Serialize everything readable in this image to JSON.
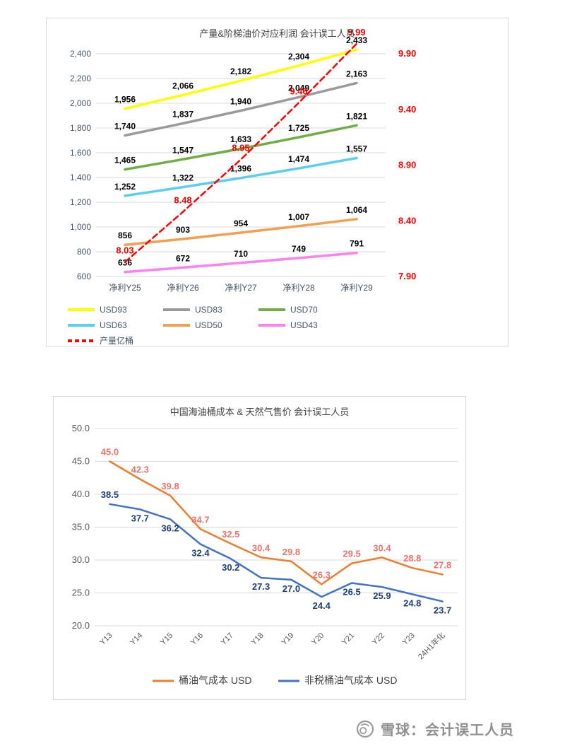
{
  "chart_data": [
    {
      "type": "line",
      "title": "产量&阶梯油价对应利润 会计误工人员",
      "categories": [
        "净利Y25",
        "净利Y26",
        "净利Y27",
        "净利Y28",
        "净利Y29"
      ],
      "x_color": "#44546a",
      "grid": true,
      "legend_position": "bottom",
      "left_axis": {
        "min": 600,
        "max": 2400,
        "color": "#44546a",
        "ticks": [
          {
            "v": 600,
            "label": "600"
          },
          {
            "v": 800,
            "label": "800"
          },
          {
            "v": 1000,
            "label": "1,000"
          },
          {
            "v": 1200,
            "label": "1,200"
          },
          {
            "v": 1400,
            "label": "1,400"
          },
          {
            "v": 1600,
            "label": "1,600"
          },
          {
            "v": 1800,
            "label": "1,800"
          },
          {
            "v": 2000,
            "label": "2,000"
          },
          {
            "v": 2200,
            "label": "2,200"
          },
          {
            "v": 2400,
            "label": "2,400"
          }
        ]
      },
      "right_axis": {
        "min": 7.9,
        "max": 9.9,
        "color": "#ff0000",
        "ticks": [
          {
            "v": 7.9,
            "label": "7.90"
          },
          {
            "v": 8.4,
            "label": "8.40"
          },
          {
            "v": 8.9,
            "label": "8.90"
          },
          {
            "v": 9.4,
            "label": "9.40"
          },
          {
            "v": 9.9,
            "label": "9.90"
          }
        ]
      },
      "series": [
        {
          "name": "USD93",
          "color": "#ffff00",
          "values": [
            1956,
            2066,
            2182,
            2304,
            2433
          ],
          "labels": [
            "1,956",
            "2,066",
            "2,182",
            "2,304",
            "2,433"
          ],
          "label_color": "#000000"
        },
        {
          "name": "USD83",
          "color": "#9a9a9a",
          "values": [
            1740,
            1837,
            1940,
            2049,
            2163
          ],
          "labels": [
            "1,740",
            "1,837",
            "1,940",
            "2,049",
            "2,163"
          ],
          "label_color": "#000000"
        },
        {
          "name": "USD70",
          "color": "#70ad47",
          "values": [
            1465,
            1547,
            1633,
            1725,
            1821
          ],
          "labels": [
            "1,465",
            "1,547",
            "1,633",
            "1,725",
            "1,821"
          ],
          "label_color": "#000000"
        },
        {
          "name": "USD63",
          "color": "#5bcdf0",
          "values": [
            1252,
            1322,
            1396,
            1474,
            1557
          ],
          "labels": [
            "1,252",
            "1,322",
            "1,396",
            "1,474",
            "1,557"
          ],
          "label_color": "#000000"
        },
        {
          "name": "USD50",
          "color": "#f0a050",
          "values": [
            856,
            903,
            954,
            1007,
            1064
          ],
          "labels": [
            "856",
            "903",
            "954",
            "1,007",
            "1,064"
          ],
          "label_color": "#000000"
        },
        {
          "name": "USD43",
          "color": "#ff80f0",
          "values": [
            636,
            672,
            710,
            749,
            791
          ],
          "labels": [
            "636",
            "672",
            "710",
            "749",
            "791"
          ],
          "label_color": "#000000"
        },
        {
          "name": "产量亿桶",
          "color": "#ff0000",
          "dashed": true,
          "width": 2.5,
          "axis": "right",
          "values": [
            8.03,
            8.48,
            8.95,
            9.46,
            9.99
          ],
          "labels": [
            "8.03",
            "8.48",
            "8.95",
            "9.46",
            "9.99"
          ],
          "label_color": "#ff0000",
          "label_size": 13,
          "label_dy": -3
        }
      ]
    },
    {
      "type": "line",
      "title": "中国海油桶成本 & 天然气售价 会计误工人员",
      "categories": [
        "Y13",
        "Y14",
        "Y15",
        "Y16",
        "Y17",
        "Y18",
        "Y19",
        "Y20",
        "Y21",
        "Y22",
        "Y23",
        "24H1年化"
      ],
      "x_color": "#595959",
      "grid": true,
      "legend_position": "bottom",
      "left_axis": {
        "min": 20,
        "max": 50,
        "color": "#595959",
        "ticks": [
          {
            "v": 20,
            "label": "20.0"
          },
          {
            "v": 25,
            "label": "25.0"
          },
          {
            "v": 30,
            "label": "30.0"
          },
          {
            "v": 35,
            "label": "35.0"
          },
          {
            "v": 40,
            "label": "40.0"
          },
          {
            "v": 45,
            "label": "45.0"
          },
          {
            "v": 50,
            "label": "50.0"
          }
        ]
      },
      "series": [
        {
          "name": "桶油气成本 USD",
          "color": "#ed7d31",
          "values": [
            45.0,
            42.3,
            39.8,
            34.7,
            32.5,
            30.4,
            29.8,
            26.3,
            29.5,
            30.4,
            28.8,
            27.8
          ],
          "labels": [
            "45.0",
            "42.3",
            "39.8",
            "34.7",
            "32.5",
            "30.4",
            "29.8",
            "26.3",
            "29.5",
            "30.4",
            "28.8",
            "27.8"
          ],
          "label_color": "#e8756b",
          "label_size": 13
        },
        {
          "name": "非税桶油气成本 USD",
          "color": "#4472c4",
          "values": [
            38.5,
            37.7,
            36.2,
            32.4,
            30.2,
            27.3,
            27.0,
            24.4,
            26.5,
            25.9,
            24.8,
            23.7
          ],
          "labels": [
            "38.5",
            "37.7",
            "36.2",
            "32.4",
            "30.2",
            "27.3",
            "27.0",
            "24.4",
            "26.5",
            "25.9",
            "24.8",
            "23.7"
          ],
          "label_color": "#1f3f77",
          "label_size": 13,
          "label_pos": [
            "a",
            "b",
            "b",
            "b",
            "b",
            "b",
            "b",
            "b",
            "b",
            "b",
            "b",
            "b"
          ]
        }
      ]
    }
  ],
  "footer": {
    "brand": "雪球：会计误工人员",
    "logo": "xueqiu-snowball-icon"
  }
}
